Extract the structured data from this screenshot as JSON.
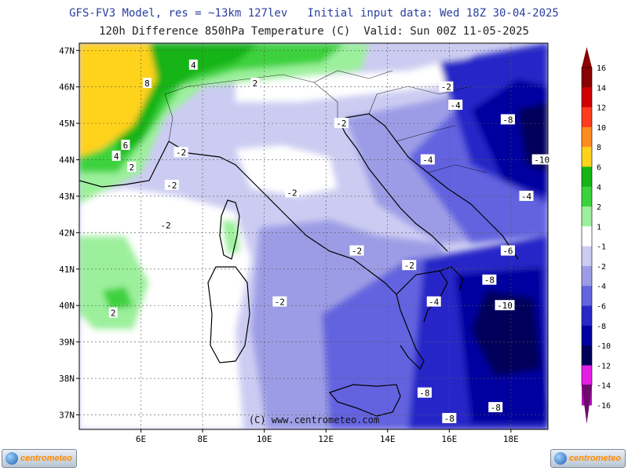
{
  "header": {
    "line1": "GFS-FV3 Model, res = ~13km 127lev   Initial input data: Wed 18Z 30-04-2025",
    "line2": "120h Difference 850hPa Temperature (C)  Valid: Sun 00Z 11-05-2025"
  },
  "map": {
    "lon_range": [
      4.0,
      19.2
    ],
    "lat_range": [
      36.6,
      47.2
    ],
    "lon_ticks": [
      {
        "v": 6,
        "label": "6E"
      },
      {
        "v": 8,
        "label": "8E"
      },
      {
        "v": 10,
        "label": "10E"
      },
      {
        "v": 12,
        "label": "12E"
      },
      {
        "v": 14,
        "label": "14E"
      },
      {
        "v": 16,
        "label": "16E"
      },
      {
        "v": 18,
        "label": "18E"
      }
    ],
    "lat_ticks": [
      {
        "v": 37,
        "label": "37N"
      },
      {
        "v": 38,
        "label": "38N"
      },
      {
        "v": 39,
        "label": "39N"
      },
      {
        "v": 40,
        "label": "40N"
      },
      {
        "v": 41,
        "label": "41N"
      },
      {
        "v": 42,
        "label": "42N"
      },
      {
        "v": 43,
        "label": "43N"
      },
      {
        "v": 44,
        "label": "44N"
      },
      {
        "v": 45,
        "label": "45N"
      },
      {
        "v": 46,
        "label": "46N"
      },
      {
        "v": 47,
        "label": "47N"
      }
    ],
    "grid": true,
    "copyright": "(C) www.centrometeo.com",
    "contour_labels": [
      {
        "lon": 6.2,
        "lat": 46.1,
        "text": "8"
      },
      {
        "lon": 7.7,
        "lat": 46.6,
        "text": "4"
      },
      {
        "lon": 9.7,
        "lat": 46.1,
        "text": "2"
      },
      {
        "lon": 5.5,
        "lat": 44.4,
        "text": "6"
      },
      {
        "lon": 5.2,
        "lat": 44.1,
        "text": "4"
      },
      {
        "lon": 5.7,
        "lat": 43.8,
        "text": "2"
      },
      {
        "lon": 7.3,
        "lat": 44.2,
        "text": "-2"
      },
      {
        "lon": 7.0,
        "lat": 43.3,
        "text": "-2"
      },
      {
        "lon": 6.8,
        "lat": 42.2,
        "text": "-2"
      },
      {
        "lon": 10.9,
        "lat": 43.1,
        "text": "-2"
      },
      {
        "lon": 12.5,
        "lat": 45.0,
        "text": "-2"
      },
      {
        "lon": 15.9,
        "lat": 46.0,
        "text": "-2"
      },
      {
        "lon": 16.2,
        "lat": 45.5,
        "text": "-4"
      },
      {
        "lon": 17.9,
        "lat": 45.1,
        "text": "-8"
      },
      {
        "lon": 19.0,
        "lat": 44.0,
        "text": "-10"
      },
      {
        "lon": 15.3,
        "lat": 44.0,
        "text": "-4"
      },
      {
        "lon": 18.5,
        "lat": 43.0,
        "text": "-4"
      },
      {
        "lon": 13.0,
        "lat": 41.5,
        "text": "-2"
      },
      {
        "lon": 14.7,
        "lat": 41.1,
        "text": "-2"
      },
      {
        "lon": 17.9,
        "lat": 41.5,
        "text": "-6"
      },
      {
        "lon": 17.3,
        "lat": 40.7,
        "text": "-8"
      },
      {
        "lon": 17.8,
        "lat": 40.0,
        "text": "-10"
      },
      {
        "lon": 15.5,
        "lat": 40.1,
        "text": "-4"
      },
      {
        "lon": 10.5,
        "lat": 40.1,
        "text": "-2"
      },
      {
        "lon": 5.1,
        "lat": 39.8,
        "text": "2"
      },
      {
        "lon": 15.2,
        "lat": 37.6,
        "text": "-8"
      },
      {
        "lon": 17.5,
        "lat": 37.2,
        "text": "-8"
      },
      {
        "lon": 16.0,
        "lat": 36.9,
        "text": "-8"
      }
    ]
  },
  "legend": {
    "levels": [
      {
        "label": "16",
        "color": "#8b0000"
      },
      {
        "label": "14",
        "color": "#d00000"
      },
      {
        "label": "12",
        "color": "#ff3c1e"
      },
      {
        "label": "10",
        "color": "#ff8c1e"
      },
      {
        "label": "8",
        "color": "#ffd21e"
      },
      {
        "label": "6",
        "color": "#14b414"
      },
      {
        "label": "4",
        "color": "#3cd23c"
      },
      {
        "label": "2",
        "color": "#9cf09c"
      },
      {
        "label": "1",
        "color": "#ffffff"
      },
      {
        "label": "-1",
        "color": "#ccccf2"
      },
      {
        "label": "-2",
        "color": "#9c9ce6"
      },
      {
        "label": "-4",
        "color": "#6464e0"
      },
      {
        "label": "-6",
        "color": "#2828c8"
      },
      {
        "label": "-8",
        "color": "#0000a0"
      },
      {
        "label": "-10",
        "color": "#00005a"
      },
      {
        "label": "-12",
        "color": "#e61ee6"
      },
      {
        "label": "-14",
        "color": "#b414b4"
      },
      {
        "label": "-16",
        "color": "#6e0a6e"
      }
    ]
  },
  "logos": {
    "word": "centrometeo"
  }
}
